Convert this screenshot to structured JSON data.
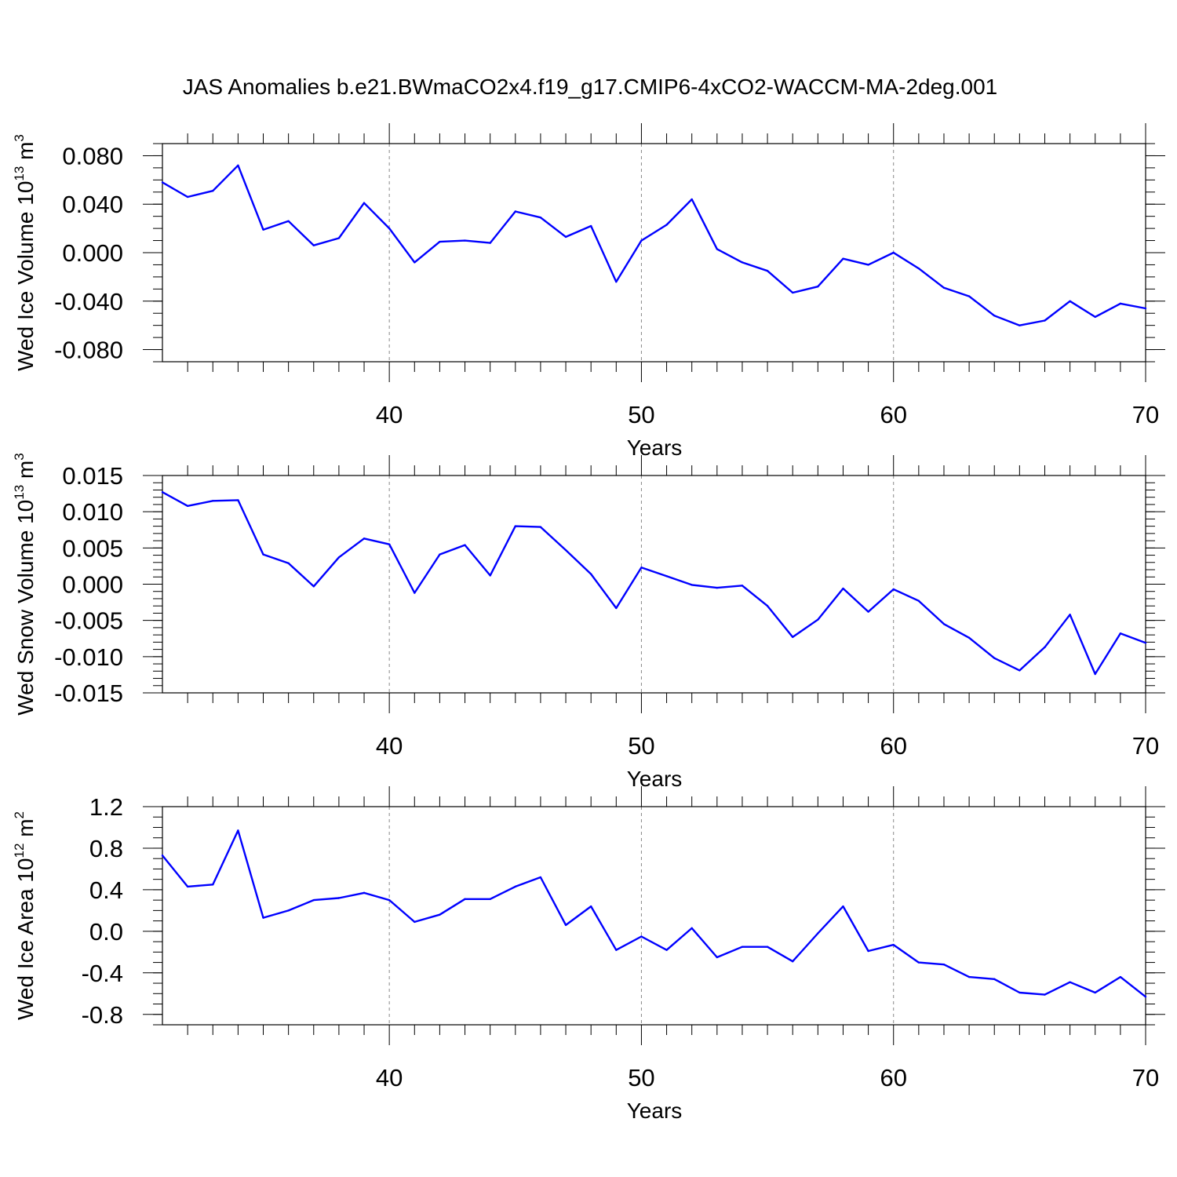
{
  "title": "JAS Anomalies b.e21.BWmaCO2x4.f19_g17.CMIP6-4xCO2-WACCM-MA-2deg.001",
  "chart_data": [
    {
      "type": "line",
      "title": "JAS Anomalies b.e21.BWmaCO2x4.f19_g17.CMIP6-4xCO2-WACCM-MA-2deg.001",
      "xlabel": "Years",
      "ylabel": {
        "text": "Wed Ice Volume 10",
        "sup": "13",
        "unit": " m",
        "unit_sup": "3"
      },
      "xlim": [
        31,
        70
      ],
      "ylim": [
        -0.09,
        0.09
      ],
      "x_ticks": [
        40,
        50,
        60,
        70
      ],
      "x_tick_labels": [
        "40",
        "50",
        "60",
        "70"
      ],
      "y_ticks": [
        0.08,
        0.04,
        0.0,
        -0.04,
        -0.08
      ],
      "y_tick_labels": [
        "0.080",
        "0.040",
        "0.000",
        "-0.040",
        "-0.080"
      ],
      "y_minor_step": 0.01,
      "grid": "dashed vertical at major x ticks",
      "line_color": "#0000ff",
      "x": [
        31,
        32,
        33,
        34,
        35,
        36,
        37,
        38,
        39,
        40,
        41,
        42,
        43,
        44,
        45,
        46,
        47,
        48,
        49,
        50,
        51,
        52,
        53,
        54,
        55,
        56,
        57,
        58,
        59,
        60,
        61,
        62,
        63,
        64,
        65,
        66,
        67,
        68,
        69,
        70
      ],
      "values": [
        0.058,
        0.046,
        0.051,
        0.072,
        0.019,
        0.026,
        0.006,
        0.012,
        0.041,
        0.02,
        -0.008,
        0.009,
        0.01,
        0.008,
        0.034,
        0.029,
        0.013,
        0.022,
        -0.024,
        0.01,
        0.023,
        0.044,
        0.003,
        -0.008,
        -0.015,
        -0.033,
        -0.028,
        -0.005,
        -0.01,
        0.0,
        -0.013,
        -0.029,
        -0.036,
        -0.052,
        -0.06,
        -0.056,
        -0.04,
        -0.053,
        -0.042,
        -0.046
      ]
    },
    {
      "type": "line",
      "xlabel": "Years",
      "ylabel": {
        "text": "Wed Snow Volume 10",
        "sup": "13",
        "unit": " m",
        "unit_sup": "3"
      },
      "xlim": [
        31,
        70
      ],
      "ylim": [
        -0.015,
        0.015
      ],
      "x_ticks": [
        40,
        50,
        60,
        70
      ],
      "x_tick_labels": [
        "40",
        "50",
        "60",
        "70"
      ],
      "y_ticks": [
        0.015,
        0.01,
        0.005,
        0.0,
        -0.005,
        -0.01,
        -0.015
      ],
      "y_tick_labels": [
        "0.015",
        "0.010",
        "0.005",
        "0.000",
        "-0.005",
        "-0.010",
        "-0.015"
      ],
      "y_minor_step": 0.001,
      "grid": "dashed vertical at major x ticks",
      "line_color": "#0000ff",
      "x": [
        31,
        32,
        33,
        34,
        35,
        36,
        37,
        38,
        39,
        40,
        41,
        42,
        43,
        44,
        45,
        46,
        47,
        48,
        49,
        50,
        51,
        52,
        53,
        54,
        55,
        56,
        57,
        58,
        59,
        60,
        61,
        62,
        63,
        64,
        65,
        66,
        67,
        68,
        69,
        70
      ],
      "values": [
        0.0127,
        0.0108,
        0.0115,
        0.0116,
        0.0041,
        0.0029,
        -0.0003,
        0.0037,
        0.0063,
        0.0055,
        -0.0012,
        0.0041,
        0.0054,
        0.0012,
        0.008,
        0.0079,
        0.0047,
        0.0014,
        -0.0033,
        0.0023,
        0.0011,
        -0.0001,
        -0.0005,
        -0.0002,
        -0.003,
        -0.0073,
        -0.0049,
        -0.0006,
        -0.0038,
        -0.0007,
        -0.0023,
        -0.0055,
        -0.0074,
        -0.0102,
        -0.0119,
        -0.0087,
        -0.0042,
        -0.0124,
        -0.0068,
        -0.0081
      ]
    },
    {
      "type": "line",
      "xlabel": "Years",
      "ylabel": {
        "text": "Wed Ice Area 10",
        "sup": "12",
        "unit": " m",
        "unit_sup": "2"
      },
      "xlim": [
        31,
        70
      ],
      "ylim": [
        -0.9,
        1.2
      ],
      "x_ticks": [
        40,
        50,
        60,
        70
      ],
      "x_tick_labels": [
        "40",
        "50",
        "60",
        "70"
      ],
      "y_ticks": [
        1.2,
        0.8,
        0.4,
        0.0,
        -0.4,
        -0.8
      ],
      "y_tick_labels": [
        "1.2",
        "0.8",
        "0.4",
        "0.0",
        "-0.4",
        "-0.8"
      ],
      "y_minor_step": 0.1,
      "grid": "dashed vertical at major x ticks",
      "line_color": "#0000ff",
      "x": [
        31,
        32,
        33,
        34,
        35,
        36,
        37,
        38,
        39,
        40,
        41,
        42,
        43,
        44,
        45,
        46,
        47,
        48,
        49,
        50,
        51,
        52,
        53,
        54,
        55,
        56,
        57,
        58,
        59,
        60,
        61,
        62,
        63,
        64,
        65,
        66,
        67,
        68,
        69,
        70
      ],
      "values": [
        0.73,
        0.43,
        0.45,
        0.97,
        0.13,
        0.2,
        0.3,
        0.32,
        0.37,
        0.3,
        0.09,
        0.16,
        0.31,
        0.31,
        0.43,
        0.52,
        0.06,
        0.24,
        -0.18,
        -0.05,
        -0.18,
        0.03,
        -0.25,
        -0.15,
        -0.15,
        -0.29,
        -0.02,
        0.24,
        -0.19,
        -0.13,
        -0.3,
        -0.32,
        -0.44,
        -0.46,
        -0.59,
        -0.61,
        -0.49,
        -0.59,
        -0.44,
        -0.63
      ]
    }
  ]
}
